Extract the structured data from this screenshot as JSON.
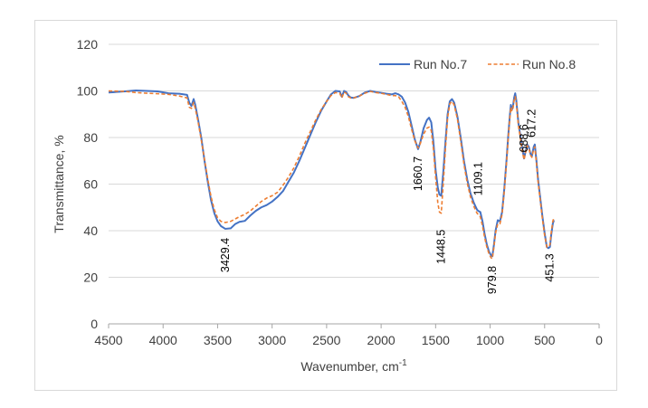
{
  "chart_data": {
    "type": "line",
    "title": "",
    "xlabel": "Wavenumber, cm",
    "xlabel_sup": "-1",
    "ylabel": "Transmittance, %",
    "xlim": [
      4500,
      0
    ],
    "ylim": [
      0,
      120
    ],
    "x_reversed": true,
    "x_ticks": [
      4500,
      4000,
      3500,
      3000,
      2500,
      2000,
      1500,
      1000,
      500,
      0
    ],
    "y_ticks": [
      0,
      20,
      40,
      60,
      80,
      100,
      120
    ],
    "grid": "horizontal",
    "legend_position": "top-right",
    "series": [
      {
        "name": "Run No.7",
        "color": "#4472c4",
        "dash": "solid",
        "points": [
          [
            4500,
            99.3
          ],
          [
            4350,
            99.8
          ],
          [
            4250,
            100.2
          ],
          [
            4150,
            100.0
          ],
          [
            4050,
            99.8
          ],
          [
            3950,
            99.0
          ],
          [
            3850,
            98.8
          ],
          [
            3780,
            98.3
          ],
          [
            3760,
            95.0
          ],
          [
            3740,
            93.5
          ],
          [
            3720,
            96.5
          ],
          [
            3705,
            94.0
          ],
          [
            3680,
            88.0
          ],
          [
            3650,
            80.0
          ],
          [
            3620,
            70.0
          ],
          [
            3590,
            61.0
          ],
          [
            3560,
            53.0
          ],
          [
            3530,
            47.5
          ],
          [
            3500,
            44.0
          ],
          [
            3470,
            42.0
          ],
          [
            3429.4,
            40.8
          ],
          [
            3380,
            41.0
          ],
          [
            3340,
            42.8
          ],
          [
            3300,
            43.8
          ],
          [
            3250,
            44.2
          ],
          [
            3200,
            46.5
          ],
          [
            3150,
            48.5
          ],
          [
            3100,
            50.0
          ],
          [
            3050,
            51.0
          ],
          [
            3000,
            52.5
          ],
          [
            2950,
            54.5
          ],
          [
            2900,
            57.0
          ],
          [
            2850,
            61.0
          ],
          [
            2800,
            65.0
          ],
          [
            2750,
            70.0
          ],
          [
            2700,
            75.5
          ],
          [
            2650,
            81.0
          ],
          [
            2600,
            86.5
          ],
          [
            2550,
            91.5
          ],
          [
            2500,
            95.5
          ],
          [
            2460,
            98.5
          ],
          [
            2420,
            100.0
          ],
          [
            2380,
            99.8
          ],
          [
            2360,
            97.5
          ],
          [
            2340,
            100.0
          ],
          [
            2320,
            99.5
          ],
          [
            2300,
            98.0
          ],
          [
            2280,
            97.2
          ],
          [
            2250,
            97.0
          ],
          [
            2200,
            97.8
          ],
          [
            2150,
            99.3
          ],
          [
            2100,
            100.0
          ],
          [
            2050,
            99.5
          ],
          [
            2000,
            99.2
          ],
          [
            1950,
            98.8
          ],
          [
            1900,
            98.5
          ],
          [
            1870,
            99.0
          ],
          [
            1840,
            98.5
          ],
          [
            1810,
            97.5
          ],
          [
            1780,
            95.0
          ],
          [
            1750,
            91.0
          ],
          [
            1720,
            85.0
          ],
          [
            1690,
            79.0
          ],
          [
            1660.7,
            75.0
          ],
          [
            1640,
            78.0
          ],
          [
            1610,
            84.0
          ],
          [
            1580,
            87.5
          ],
          [
            1560,
            88.5
          ],
          [
            1540,
            86.5
          ],
          [
            1520,
            78.0
          ],
          [
            1500,
            66.0
          ],
          [
            1480,
            58.5
          ],
          [
            1465,
            55.5
          ],
          [
            1448.5,
            55.0
          ],
          [
            1430,
            65.0
          ],
          [
            1410,
            78.0
          ],
          [
            1390,
            90.0
          ],
          [
            1370,
            95.5
          ],
          [
            1350,
            96.5
          ],
          [
            1330,
            95.0
          ],
          [
            1300,
            89.0
          ],
          [
            1270,
            80.0
          ],
          [
            1240,
            70.0
          ],
          [
            1210,
            62.0
          ],
          [
            1180,
            56.0
          ],
          [
            1150,
            52.0
          ],
          [
            1120,
            49.0
          ],
          [
            1109.1,
            48.5
          ],
          [
            1090,
            48.0
          ],
          [
            1070,
            44.0
          ],
          [
            1050,
            38.5
          ],
          [
            1030,
            34.0
          ],
          [
            1010,
            31.0
          ],
          [
            990,
            29.3
          ],
          [
            979.8,
            29.0
          ],
          [
            965,
            34.0
          ],
          [
            950,
            40.0
          ],
          [
            930,
            44.5
          ],
          [
            910,
            44.0
          ],
          [
            890,
            48.0
          ],
          [
            870,
            58.0
          ],
          [
            850,
            70.0
          ],
          [
            835,
            80.0
          ],
          [
            820,
            89.0
          ],
          [
            810,
            94.0
          ],
          [
            800,
            92.0
          ],
          [
            790,
            93.5
          ],
          [
            780,
            97.0
          ],
          [
            770,
            99.0
          ],
          [
            760,
            96.0
          ],
          [
            750,
            91.0
          ],
          [
            740,
            86.0
          ],
          [
            720,
            80.0
          ],
          [
            700,
            74.0
          ],
          [
            688.6,
            71.0
          ],
          [
            675,
            74.0
          ],
          [
            660,
            77.0
          ],
          [
            645,
            76.0
          ],
          [
            630,
            73.0
          ],
          [
            617.2,
            72.0
          ],
          [
            600,
            76.0
          ],
          [
            590,
            77.0
          ],
          [
            575,
            70.0
          ],
          [
            560,
            62.0
          ],
          [
            540,
            54.0
          ],
          [
            520,
            46.0
          ],
          [
            500,
            39.0
          ],
          [
            480,
            33.0
          ],
          [
            465,
            32.5
          ],
          [
            451.3,
            33.0
          ],
          [
            440,
            38.0
          ],
          [
            425,
            43.0
          ],
          [
            415,
            44.5
          ]
        ]
      },
      {
        "name": "Run No.8",
        "color": "#ed7d31",
        "dash": "dashed",
        "points": [
          [
            4500,
            100.0
          ],
          [
            4350,
            99.8
          ],
          [
            4250,
            99.3
          ],
          [
            4150,
            99.0
          ],
          [
            4050,
            98.8
          ],
          [
            3950,
            98.5
          ],
          [
            3850,
            97.8
          ],
          [
            3780,
            97.0
          ],
          [
            3760,
            93.0
          ],
          [
            3740,
            92.5
          ],
          [
            3720,
            95.0
          ],
          [
            3705,
            92.5
          ],
          [
            3680,
            87.0
          ],
          [
            3650,
            79.0
          ],
          [
            3620,
            70.5
          ],
          [
            3590,
            62.0
          ],
          [
            3560,
            54.5
          ],
          [
            3530,
            49.0
          ],
          [
            3500,
            45.5
          ],
          [
            3470,
            44.0
          ],
          [
            3429.4,
            43.5
          ],
          [
            3380,
            44.0
          ],
          [
            3340,
            45.0
          ],
          [
            3300,
            46.0
          ],
          [
            3250,
            47.0
          ],
          [
            3200,
            48.5
          ],
          [
            3150,
            50.5
          ],
          [
            3100,
            52.5
          ],
          [
            3050,
            54.0
          ],
          [
            3000,
            55.0
          ],
          [
            2950,
            56.5
          ],
          [
            2900,
            59.5
          ],
          [
            2850,
            63.0
          ],
          [
            2800,
            67.0
          ],
          [
            2750,
            72.0
          ],
          [
            2700,
            77.5
          ],
          [
            2650,
            82.5
          ],
          [
            2600,
            87.5
          ],
          [
            2550,
            92.0
          ],
          [
            2500,
            95.5
          ],
          [
            2460,
            98.0
          ],
          [
            2420,
            99.3
          ],
          [
            2380,
            99.0
          ],
          [
            2360,
            97.0
          ],
          [
            2340,
            99.5
          ],
          [
            2320,
            99.0
          ],
          [
            2300,
            97.5
          ],
          [
            2280,
            97.0
          ],
          [
            2250,
            97.0
          ],
          [
            2200,
            97.8
          ],
          [
            2150,
            99.0
          ],
          [
            2100,
            99.8
          ],
          [
            2050,
            99.3
          ],
          [
            2000,
            99.0
          ],
          [
            1950,
            98.5
          ],
          [
            1900,
            98.0
          ],
          [
            1870,
            98.0
          ],
          [
            1840,
            97.5
          ],
          [
            1810,
            95.5
          ],
          [
            1780,
            93.0
          ],
          [
            1750,
            89.0
          ],
          [
            1720,
            83.5
          ],
          [
            1690,
            78.5
          ],
          [
            1660.7,
            75.5
          ],
          [
            1640,
            77.5
          ],
          [
            1610,
            81.5
          ],
          [
            1580,
            84.0
          ],
          [
            1560,
            84.5
          ],
          [
            1540,
            83.0
          ],
          [
            1520,
            75.0
          ],
          [
            1500,
            63.0
          ],
          [
            1480,
            52.0
          ],
          [
            1465,
            48.0
          ],
          [
            1448.5,
            47.5
          ],
          [
            1430,
            60.0
          ],
          [
            1410,
            75.0
          ],
          [
            1390,
            88.5
          ],
          [
            1370,
            94.5
          ],
          [
            1350,
            95.5
          ],
          [
            1330,
            94.0
          ],
          [
            1300,
            88.0
          ],
          [
            1270,
            78.5
          ],
          [
            1240,
            68.5
          ],
          [
            1210,
            60.5
          ],
          [
            1180,
            54.5
          ],
          [
            1150,
            50.5
          ],
          [
            1120,
            47.5
          ],
          [
            1109.1,
            47.0
          ],
          [
            1090,
            46.0
          ],
          [
            1070,
            42.0
          ],
          [
            1050,
            37.0
          ],
          [
            1030,
            33.0
          ],
          [
            1010,
            30.0
          ],
          [
            990,
            28.3
          ],
          [
            979.8,
            28.0
          ],
          [
            965,
            33.0
          ],
          [
            950,
            39.0
          ],
          [
            930,
            43.0
          ],
          [
            910,
            43.0
          ],
          [
            890,
            47.0
          ],
          [
            870,
            57.0
          ],
          [
            850,
            69.0
          ],
          [
            835,
            79.0
          ],
          [
            820,
            88.0
          ],
          [
            810,
            93.0
          ],
          [
            800,
            91.5
          ],
          [
            790,
            92.5
          ],
          [
            780,
            96.0
          ],
          [
            770,
            97.5
          ],
          [
            760,
            95.0
          ],
          [
            750,
            90.0
          ],
          [
            740,
            85.0
          ],
          [
            720,
            79.0
          ],
          [
            700,
            73.0
          ],
          [
            688.6,
            70.5
          ],
          [
            675,
            73.5
          ],
          [
            660,
            76.5
          ],
          [
            645,
            75.5
          ],
          [
            630,
            72.5
          ],
          [
            617.2,
            71.5
          ],
          [
            600,
            75.0
          ],
          [
            590,
            76.0
          ],
          [
            575,
            69.0
          ],
          [
            560,
            61.0
          ],
          [
            540,
            53.0
          ],
          [
            520,
            45.0
          ],
          [
            500,
            38.0
          ],
          [
            480,
            33.0
          ],
          [
            465,
            33.0
          ],
          [
            451.3,
            34.0
          ],
          [
            440,
            39.0
          ],
          [
            425,
            44.0
          ],
          [
            415,
            45.5
          ]
        ]
      }
    ],
    "annotations": [
      {
        "label": "3429.4",
        "x": 3429.4,
        "y": 40.8
      },
      {
        "label": "1660.7",
        "x": 1660.7,
        "y": 75.0
      },
      {
        "label": "1448.5",
        "x": 1448.5,
        "y": 47.5
      },
      {
        "label": "1109.1",
        "x": 1109.1,
        "y": 47.0
      },
      {
        "label": "979.8",
        "x": 979.8,
        "y": 28.0
      },
      {
        "label": "688.6",
        "x": 688.6,
        "y": 70.5
      },
      {
        "label": "617.2",
        "x": 617.2,
        "y": 71.5
      },
      {
        "label": "451.3",
        "x": 451.3,
        "y": 32.5
      }
    ]
  }
}
